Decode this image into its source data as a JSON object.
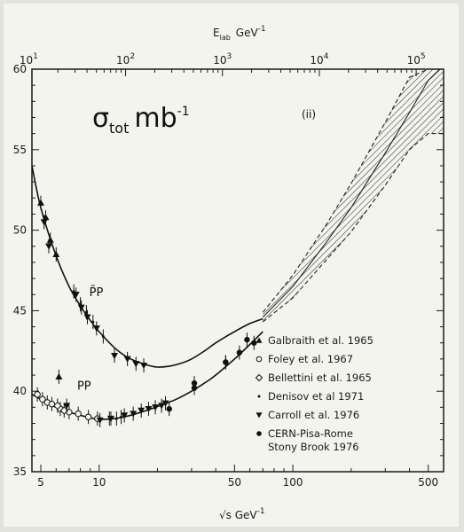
{
  "chart_data": {
    "type": "scatter",
    "panel_label": "(ii)",
    "quantity_label": "σ",
    "quantity_subscript": "tot",
    "quantity_unit": "mb",
    "quantity_unit_sup": "-1",
    "xlabel": "√s  GeV",
    "xlabel_sup": "-1",
    "x2label": "E",
    "x2label_sub": "lab",
    "x2label_unit": "GeV",
    "x2label_sup": "-1",
    "xscale": "log",
    "xlim": [
      4.5,
      600
    ],
    "ylim": [
      35,
      60
    ],
    "xticks": [
      {
        "value": 5,
        "label": "5"
      },
      {
        "value": 10,
        "label": "10"
      },
      {
        "value": 50,
        "label": "50"
      },
      {
        "value": 100,
        "label": "100"
      },
      {
        "value": 500,
        "label": "500"
      }
    ],
    "yticks": [
      {
        "value": 35,
        "label": "35"
      },
      {
        "value": 40,
        "label": "40"
      },
      {
        "value": 45,
        "label": "45"
      },
      {
        "value": 50,
        "label": "50"
      },
      {
        "value": 55,
        "label": "55"
      },
      {
        "value": 60,
        "label": "60"
      }
    ],
    "top_ticks": [
      {
        "elab": 10,
        "base": "10",
        "exp": "1"
      },
      {
        "elab": 100,
        "base": "10",
        "exp": "2"
      },
      {
        "elab": 1000,
        "base": "10",
        "exp": "3"
      },
      {
        "elab": 10000,
        "base": "10",
        "exp": "4"
      },
      {
        "elab": 100000,
        "base": "10",
        "exp": "5"
      }
    ],
    "curve_labels": [
      {
        "text": "P̄P",
        "x": 8.9,
        "y": 45.9
      },
      {
        "text": "PP",
        "x": 7.7,
        "y": 40.1
      }
    ],
    "curves": [
      {
        "name": "P̄P",
        "x": [
          4.5,
          5,
          6,
          7,
          8,
          9,
          10,
          12,
          14,
          16,
          18,
          20,
          23,
          26,
          30,
          35,
          40,
          50,
          60,
          70
        ],
        "y": [
          54.0,
          51.4,
          48.4,
          46.5,
          45.3,
          44.4,
          43.7,
          42.7,
          42.1,
          41.8,
          41.6,
          41.5,
          41.55,
          41.7,
          42.0,
          42.5,
          43.0,
          43.7,
          44.2,
          44.5
        ]
      },
      {
        "name": "PP",
        "x": [
          4.5,
          5,
          6,
          7,
          8,
          9,
          10,
          12,
          14,
          16,
          18,
          20,
          25,
          30,
          35,
          40,
          50,
          60,
          70
        ],
        "y": [
          39.8,
          39.5,
          39.0,
          38.7,
          38.5,
          38.35,
          38.25,
          38.3,
          38.45,
          38.65,
          38.85,
          39.05,
          39.5,
          40.0,
          40.5,
          41.0,
          42.0,
          42.9,
          43.7
        ]
      }
    ],
    "band": {
      "x": [
        70,
        100,
        150,
        200,
        300,
        400,
        500,
        600
      ],
      "center": [
        44.6,
        46.5,
        49.3,
        51.4,
        54.8,
        57.3,
        59.3,
        60.2
      ],
      "upper": [
        44.9,
        47.2,
        50.4,
        52.9,
        56.7,
        59.5,
        60,
        60
      ],
      "lower": [
        44.3,
        45.8,
        48.2,
        49.9,
        52.8,
        55.0,
        56.0,
        56.0
      ]
    },
    "legend": [
      {
        "marker": "triangle-up",
        "label": "Galbraith et al. 1965"
      },
      {
        "marker": "circle-open",
        "label": "Foley et al. 1967"
      },
      {
        "marker": "diamond-open",
        "label": "Bellettini et al. 1965"
      },
      {
        "marker": "dot",
        "label": "Denisov et al 1971"
      },
      {
        "marker": "triangle-down",
        "label": "Carroll et al. 1976"
      },
      {
        "marker": "circle-filled",
        "label": "CERN-Pisa-Rome",
        "label2": "Stony Brook 1976"
      }
    ],
    "series": [
      {
        "name": "Galbraith et al. 1965",
        "marker": "triangle-up",
        "points": [
          [
            5.0,
            51.7
          ],
          [
            5.3,
            50.8
          ],
          [
            5.6,
            49.4
          ],
          [
            6.0,
            48.5
          ],
          [
            6.2,
            40.9
          ]
        ]
      },
      {
        "name": "Foley et al. 1967",
        "marker": "circle-open",
        "points": [
          [
            4.8,
            39.8
          ],
          [
            5.1,
            39.5
          ],
          [
            5.4,
            39.3
          ],
          [
            5.7,
            39.2
          ],
          [
            6.3,
            38.9
          ],
          [
            7.0,
            38.7
          ],
          [
            7.8,
            38.6
          ],
          [
            8.8,
            38.4
          ],
          [
            9.8,
            38.3
          ]
        ]
      },
      {
        "name": "Bellettini et al. 1965",
        "marker": "diamond-open",
        "points": [
          [
            6.1,
            39.1
          ],
          [
            6.6,
            38.8
          ]
        ]
      },
      {
        "name": "Denisov et al 1971",
        "marker": "dot",
        "points": [
          [
            7.4,
            46.2
          ],
          [
            8.0,
            45.4
          ],
          [
            8.6,
            44.9
          ],
          [
            9.3,
            44.3
          ],
          [
            10.5,
            43.4
          ],
          [
            11.3,
            38.3
          ],
          [
            12.3,
            38.3
          ],
          [
            13.0,
            38.4
          ]
        ]
      },
      {
        "name": "Carroll et al. 1976",
        "marker": "triangle-down",
        "points": [
          [
            5.2,
            50.5
          ],
          [
            5.5,
            49.0
          ],
          [
            6.8,
            39.1
          ],
          [
            7.6,
            46.0
          ],
          [
            8.1,
            45.2
          ],
          [
            8.7,
            44.6
          ],
          [
            9.7,
            43.9
          ],
          [
            12.0,
            42.2
          ],
          [
            14.0,
            42.0
          ],
          [
            15.5,
            41.7
          ],
          [
            17.0,
            41.6
          ],
          [
            10.1,
            38.2
          ],
          [
            11.5,
            38.3
          ],
          [
            13.5,
            38.5
          ],
          [
            15.0,
            38.6
          ],
          [
            16.5,
            38.8
          ],
          [
            18.0,
            38.9
          ],
          [
            19.5,
            39.0
          ],
          [
            21.0,
            39.1
          ],
          [
            22.0,
            39.25
          ]
        ]
      },
      {
        "name": "CERN-Pisa-Rome Stony Brook 1976",
        "marker": "circle-filled",
        "points": [
          [
            23.0,
            38.9
          ],
          [
            31.0,
            40.2
          ],
          [
            45.0,
            41.8
          ],
          [
            53.0,
            42.4
          ],
          [
            58.0,
            43.2
          ],
          [
            63.0,
            43.0
          ],
          [
            31.0,
            40.5
          ],
          [
            45.0,
            41.8
          ]
        ]
      }
    ]
  }
}
